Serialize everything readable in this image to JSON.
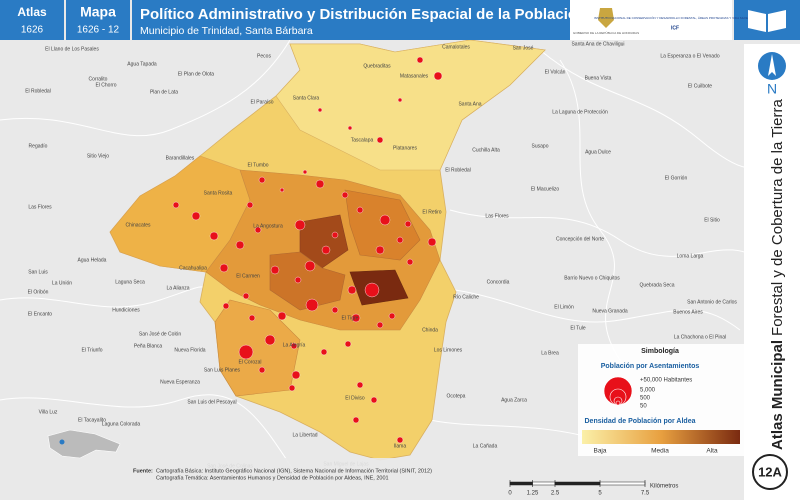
{
  "header": {
    "atlas_label": "Atlas",
    "atlas_number": "1626",
    "map_label": "Mapa",
    "map_number": "1626 - 12",
    "title": "Político Administrativo y Distribución Espacial de la Población",
    "subtitle": "Municipio de Trinidad, Santa Bárbara"
  },
  "logos": {
    "government": "GOBIERNO DE LA REPÚBLICA DE HONDURAS",
    "institute": "INSTITUTO NACIONAL DE CONSERVACIÓN Y DESARROLLO FORESTAL, ÁREAS PROTEGIDAS Y VIDA SILVESTRE",
    "acronym": "ICF"
  },
  "side_title": {
    "bold": "Atlas Municipal",
    "regular": "Forestal y de Cobertura de la Tierra"
  },
  "north": "N",
  "sheet": "12A",
  "places": [
    "El Llano de Los Pasales",
    "Corralito",
    "Pecos",
    "Quebraditas",
    "Matasanales",
    "Camalotales",
    "San José",
    "Santa Ana de Chaviligui",
    "El Volcán",
    "La Esperanza o El Venado",
    "Agua Tapada",
    "El Plan de Olota",
    "El Chorro",
    "El Robledal",
    "Plan de Lata",
    "Buena Vista",
    "El Cuilbote",
    "El Paraíso",
    "Santa Clara",
    "Santa Ana",
    "La Laguna de Protección",
    "Tascalapa",
    "Platanares",
    "Cuchilla Alta",
    "Susapo",
    "Agua Dulce",
    "Regadío",
    "Sitio Viejo",
    "Barandillales",
    "El Tumbo",
    "El Robledal",
    "El Macuelizo",
    "El Gorrión",
    "Santa Rosita",
    "El Retiro",
    "Las Flores",
    "Las Flores",
    "El Sitio",
    "Chinacates",
    "La Angostura",
    "Concepción del Norte",
    "Agua Helada",
    "Loma Larga",
    "Cacahualipa",
    "Laguna Seca",
    "Concordia",
    "Barrio Nuevo o Chiquitos",
    "San Luis",
    "La Unión",
    "El Oribón",
    "La Alianza",
    "El Carmen",
    "Quebrada Seca",
    "El Limón",
    "Río Caliche",
    "San Antonio de Carlos",
    "Nueva Granada",
    "Buenos Aires",
    "El Encanto",
    "Hundiciones",
    "El Tigre",
    "San José de Colón",
    "Chinda",
    "El Tule",
    "Peña Blanca",
    "Nueva Florida",
    "La Alegría",
    "El Triunfo",
    "Los Limones",
    "La Brea",
    "La Chachona o El Pinal",
    "San Luis Planes",
    "Nueva Esperanza",
    "El Corozal",
    "San Luis del Pescayal",
    "El Tacayalito",
    "El Diviso",
    "Ocotepa",
    "Agua Zarca",
    "Villa Luz",
    "La Libertad",
    "Ilama",
    "La Cañada",
    "Laguna Colorada",
    "San José de Colinas",
    "San Miguel de Lajas"
  ],
  "legend": {
    "title": "Simbología",
    "population_title": "Población por Asentamientos",
    "population_classes": [
      "+50,000 Habitantes",
      "5,000",
      "500",
      "50"
    ],
    "density_title": "Densidad de Población por Aldea",
    "density_classes": [
      "Baja",
      "Media",
      "Alta"
    ]
  },
  "scale": {
    "ticks": [
      0,
      1.25,
      2.5,
      5,
      7.5
    ],
    "unit": "Kilómetros"
  },
  "source": {
    "label": "Fuente:",
    "lines": [
      "Cartografía Básica: Instituto Geográfico Nacional (IGN), Sistema Nacional de Información Territorial (SINIT, 2012)",
      "Cartografía Temática: Asentamientos Humanos y Densidad de Población por Aldeas, INE, 2001"
    ]
  }
}
